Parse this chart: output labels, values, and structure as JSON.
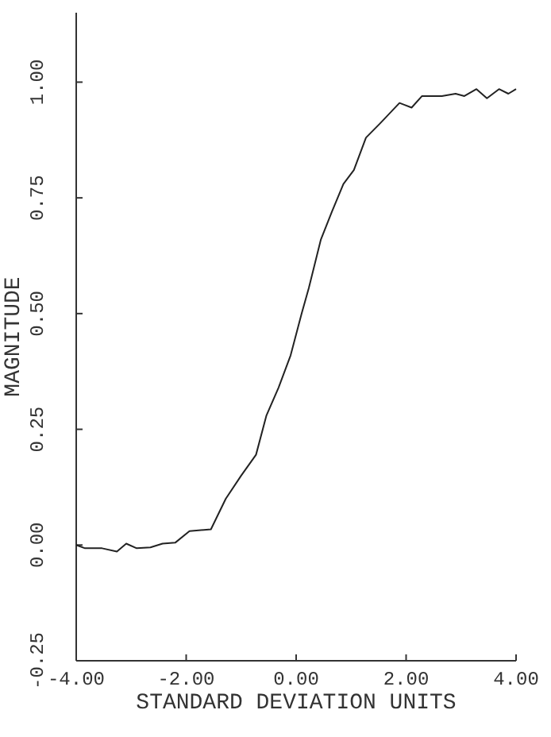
{
  "chart_data": {
    "type": "line",
    "xlabel": "STANDARD DEVIATION UNITS",
    "ylabel": "MAGNITUDE",
    "x": [
      -4,
      -3.84,
      -3.53,
      -3.26,
      -3.09,
      -2.9,
      -2.65,
      -2.43,
      -2.2,
      -1.94,
      -1.55,
      -1.28,
      -1.0,
      -0.73,
      -0.54,
      -0.32,
      -0.1,
      0.1,
      0.23,
      0.45,
      0.65,
      0.86,
      1.05,
      1.27,
      1.52,
      1.88,
      2.1,
      2.29,
      2.65,
      2.9,
      3.06,
      3.28,
      3.47,
      3.69,
      3.86,
      4.0
    ],
    "series": [
      {
        "color": "#222222",
        "values": [
          0,
          -0.007,
          -0.007,
          -0.014,
          0.003,
          -0.007,
          -0.005,
          0.003,
          0.005,
          0.03,
          0.034,
          0.1,
          0.15,
          0.195,
          0.28,
          0.34,
          0.41,
          0.5,
          0.555,
          0.66,
          0.72,
          0.78,
          0.81,
          0.88,
          0.91,
          0.955,
          0.945,
          0.97,
          0.97,
          0.975,
          0.97,
          0.985,
          0.965,
          0.985,
          0.975,
          0.985
        ]
      }
    ],
    "xlim": [
      -4,
      4
    ],
    "ylim": [
      -0.25,
      1.15
    ],
    "xticks": [
      {
        "value": -4,
        "label": "-4.00"
      },
      {
        "value": -2,
        "label": "-2.00"
      },
      {
        "value": 0,
        "label": "0.00"
      },
      {
        "value": 2,
        "label": "2.00"
      },
      {
        "value": 4,
        "label": "4.00"
      }
    ],
    "yticks": [
      {
        "value": -0.25,
        "label": "-0.25"
      },
      {
        "value": 0,
        "label": "0.00"
      },
      {
        "value": 0.25,
        "label": "0.25"
      },
      {
        "value": 0.5,
        "label": "0.50"
      },
      {
        "value": 0.75,
        "label": "0.75"
      },
      {
        "value": 1,
        "label": "1.00"
      }
    ],
    "grid": false,
    "marker": "none",
    "line_style": "solid"
  }
}
